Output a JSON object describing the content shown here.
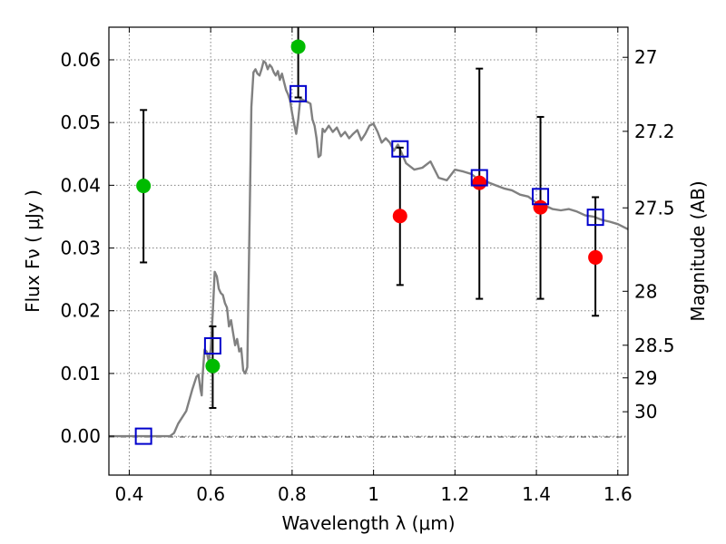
{
  "chart_data": {
    "type": "scatter",
    "xlabel": "Wavelength  λ (μm)",
    "ylabel": "Flux  Fν  ( μJy )",
    "ylabel_right": "Magnitude (AB)",
    "xlim": [
      0.35,
      1.625
    ],
    "ylim": [
      -0.0062,
      0.0652
    ],
    "grid": true,
    "x_ticks": [
      0.4,
      0.6,
      0.8,
      1.0,
      1.2,
      1.4,
      1.6
    ],
    "x_tick_labels": [
      "0.4",
      "0.6",
      "0.8",
      "1",
      "1.2",
      "1.4",
      "1.6"
    ],
    "y_ticks": [
      0.0,
      0.01,
      0.02,
      0.03,
      0.04,
      0.05,
      0.06
    ],
    "y_tick_labels": [
      "0.00",
      "0.01",
      "0.02",
      "0.03",
      "0.04",
      "0.05",
      "0.06"
    ],
    "right_ticks": [
      {
        "label": "27",
        "flux": 0.0604
      },
      {
        "label": "27.2",
        "flux": 0.0486
      },
      {
        "label": "27.5",
        "flux": 0.0364
      },
      {
        "label": "28",
        "flux": 0.0231
      },
      {
        "label": "28.5",
        "flux": 0.0145
      },
      {
        "label": "29",
        "flux": 0.0093
      },
      {
        "label": "30",
        "flux": 0.0039
      }
    ],
    "series": [
      {
        "marker": "line",
        "color": "#808080",
        "x": [
          0.35,
          0.5,
          0.51,
          0.52,
          0.54,
          0.555,
          0.565,
          0.57,
          0.575,
          0.578,
          0.58,
          0.585,
          0.59,
          0.595,
          0.6,
          0.605,
          0.61,
          0.615,
          0.62,
          0.625,
          0.63,
          0.635,
          0.64,
          0.645,
          0.65,
          0.655,
          0.66,
          0.665,
          0.67,
          0.675,
          0.68,
          0.685,
          0.69,
          0.7,
          0.705,
          0.71,
          0.715,
          0.72,
          0.725,
          0.73,
          0.735,
          0.74,
          0.745,
          0.75,
          0.755,
          0.76,
          0.765,
          0.77,
          0.775,
          0.78,
          0.785,
          0.79,
          0.795,
          0.8,
          0.805,
          0.81,
          0.815,
          0.82,
          0.83,
          0.84,
          0.845,
          0.85,
          0.855,
          0.86,
          0.865,
          0.87,
          0.875,
          0.88,
          0.89,
          0.9,
          0.91,
          0.92,
          0.93,
          0.94,
          0.95,
          0.96,
          0.97,
          0.98,
          0.99,
          1.0,
          1.01,
          1.02,
          1.03,
          1.04,
          1.05,
          1.06,
          1.08,
          1.1,
          1.12,
          1.14,
          1.16,
          1.18,
          1.2,
          1.22,
          1.24,
          1.26,
          1.28,
          1.3,
          1.32,
          1.34,
          1.36,
          1.38,
          1.4,
          1.42,
          1.44,
          1.46,
          1.48,
          1.5,
          1.52,
          1.54,
          1.56,
          1.58,
          1.6,
          1.625
        ],
        "y": [
          0.0,
          0.0,
          0.0005,
          0.002,
          0.004,
          0.0075,
          0.0095,
          0.0098,
          0.0075,
          0.0065,
          0.0095,
          0.0138,
          0.0135,
          0.012,
          0.0138,
          0.0195,
          0.0262,
          0.0255,
          0.0235,
          0.0228,
          0.0225,
          0.0212,
          0.0205,
          0.0175,
          0.0185,
          0.0165,
          0.0145,
          0.0155,
          0.0135,
          0.014,
          0.0105,
          0.01,
          0.011,
          0.0525,
          0.058,
          0.0585,
          0.0578,
          0.0575,
          0.0585,
          0.0598,
          0.0595,
          0.0585,
          0.0592,
          0.0588,
          0.058,
          0.0575,
          0.0582,
          0.0568,
          0.0578,
          0.0565,
          0.0552,
          0.0545,
          0.0535,
          0.0515,
          0.0498,
          0.0482,
          0.0505,
          0.0538,
          0.0535,
          0.0532,
          0.053,
          0.0505,
          0.0495,
          0.0475,
          0.0445,
          0.0448,
          0.049,
          0.0485,
          0.0495,
          0.0485,
          0.0492,
          0.0478,
          0.0485,
          0.0475,
          0.0482,
          0.0488,
          0.0472,
          0.0482,
          0.0495,
          0.0498,
          0.0485,
          0.0468,
          0.0475,
          0.0468,
          0.0455,
          0.0465,
          0.0435,
          0.0425,
          0.0428,
          0.0438,
          0.0412,
          0.0408,
          0.0425,
          0.0422,
          0.0418,
          0.0408,
          0.0405,
          0.04,
          0.0395,
          0.0392,
          0.0385,
          0.0382,
          0.0372,
          0.0368,
          0.0362,
          0.036,
          0.0362,
          0.0358,
          0.0352,
          0.035,
          0.0345,
          0.0342,
          0.0338,
          0.033
        ]
      },
      {
        "marker": "circle",
        "color": "#00bb00",
        "x": [
          0.435,
          0.605,
          0.815
        ],
        "y": [
          0.0399,
          0.0112,
          0.0621
        ],
        "yerr_low": [
          0.0277,
          0.0045,
          0.054
        ],
        "yerr_high": [
          0.052,
          0.0175,
          0.066
        ]
      },
      {
        "marker": "circle",
        "color": "#ff0000",
        "x": [
          1.065,
          1.26,
          1.41,
          1.545
        ],
        "y": [
          0.0351,
          0.0404,
          0.0365,
          0.0285
        ],
        "yerr_low": [
          0.0241,
          0.0219,
          0.0219,
          0.0192
        ],
        "yerr_high": [
          0.046,
          0.0586,
          0.0509,
          0.0381
        ]
      },
      {
        "marker": "square",
        "color": "#0000cc",
        "x": [
          0.435,
          0.605,
          0.815,
          1.065,
          1.26,
          1.41,
          1.545
        ],
        "y": [
          0.0,
          0.0144,
          0.0546,
          0.0458,
          0.0412,
          0.0382,
          0.0349
        ]
      }
    ]
  }
}
